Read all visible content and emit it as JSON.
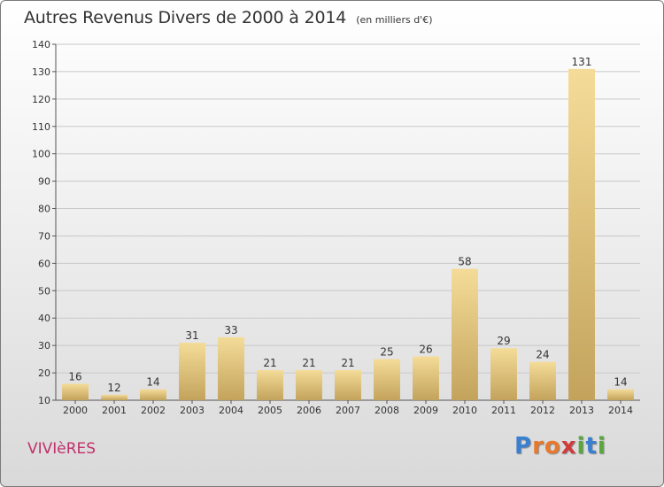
{
  "header": {
    "title": "Autres Revenus Divers de 2000 à 2014",
    "subtitle": "(en milliers d'€)"
  },
  "footer": {
    "place": "VIVIèRES",
    "logo_letters": [
      {
        "ch": "P",
        "color": "#3a7fd0"
      },
      {
        "ch": "r",
        "color": "#e8782b"
      },
      {
        "ch": "o",
        "color": "#e8782b"
      },
      {
        "ch": "x",
        "color": "#d23b3b"
      },
      {
        "ch": "i",
        "color": "#58a83b"
      },
      {
        "ch": "t",
        "color": "#3a7fd0"
      },
      {
        "ch": "i",
        "color": "#58a83b"
      }
    ]
  },
  "colors": {
    "bar_light": "#f4dc98",
    "bar_dark": "#c3a35c",
    "axis": "#555555",
    "grid": "#c8c8c8",
    "text": "#333333"
  },
  "chart_data": {
    "type": "bar",
    "categories": [
      "2000",
      "2001",
      "2002",
      "2003",
      "2004",
      "2005",
      "2006",
      "2007",
      "2008",
      "2009",
      "2010",
      "2011",
      "2012",
      "2013",
      "2014"
    ],
    "values": [
      16,
      12,
      14,
      31,
      33,
      21,
      21,
      21,
      25,
      26,
      58,
      29,
      24,
      131,
      14
    ],
    "ylim": [
      10,
      140
    ],
    "yticks": [
      10,
      20,
      30,
      40,
      50,
      60,
      70,
      80,
      90,
      100,
      110,
      120,
      130,
      140
    ],
    "grid": true
  }
}
